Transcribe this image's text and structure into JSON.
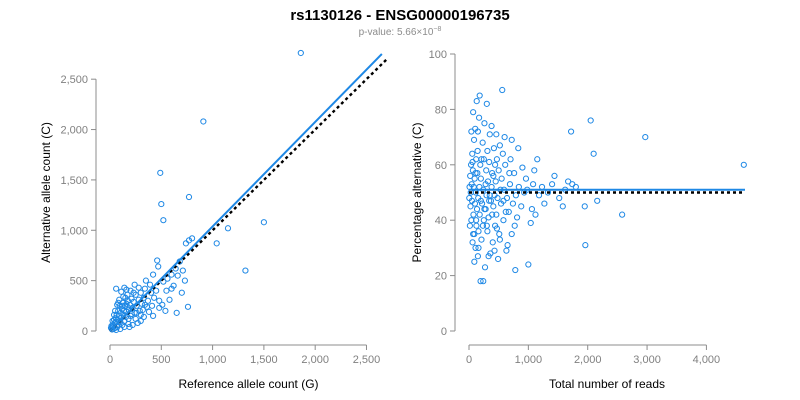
{
  "header": {
    "title": "rs1130126 - ENSG00000196735",
    "pvalue_prefix": "p-value: 5.66×10",
    "pvalue_exp": "−8"
  },
  "colors": {
    "points": "#1e88e5",
    "fit_line": "#1e88e5",
    "ref_line": "#000000",
    "axis": "#8c8c8c"
  },
  "chart_data": [
    {
      "type": "scatter",
      "xlabel": "Reference allele count (G)",
      "ylabel": "Alternative allele count (C)",
      "xlim": [
        0,
        2700
      ],
      "ylim": [
        0,
        2750
      ],
      "xticks": [
        0,
        500,
        1000,
        1500,
        2000,
        2500
      ],
      "xtick_labels": [
        "0",
        "500",
        "1,000",
        "1,500",
        "2,000",
        "2,500"
      ],
      "yticks": [
        0,
        500,
        1000,
        1500,
        2000,
        2500
      ],
      "ytick_labels": [
        "0",
        "500",
        "1,000",
        "1,500",
        "2,000",
        "2,500"
      ],
      "grid": false,
      "fit_line": {
        "style": "solid",
        "x": [
          0,
          2650
        ],
        "y": [
          0,
          2750
        ]
      },
      "reference_line": {
        "style": "dotted",
        "x": [
          0,
          2700
        ],
        "y": [
          0,
          2700
        ]
      },
      "points": [
        [
          1860,
          2760
        ],
        [
          910,
          2080
        ],
        [
          490,
          1570
        ],
        [
          500,
          1260
        ],
        [
          770,
          1330
        ],
        [
          520,
          1100
        ],
        [
          1500,
          1080
        ],
        [
          1150,
          1020
        ],
        [
          1040,
          870
        ],
        [
          800,
          920
        ],
        [
          770,
          900
        ],
        [
          740,
          870
        ],
        [
          1320,
          600
        ],
        [
          760,
          240
        ],
        [
          650,
          180
        ],
        [
          730,
          500
        ],
        [
          680,
          690
        ],
        [
          640,
          620
        ],
        [
          600,
          560
        ],
        [
          560,
          520
        ],
        [
          520,
          490
        ],
        [
          470,
          640
        ],
        [
          460,
          700
        ],
        [
          420,
          560
        ],
        [
          400,
          380
        ],
        [
          390,
          460
        ],
        [
          370,
          300
        ],
        [
          340,
          420
        ],
        [
          330,
          330
        ],
        [
          310,
          270
        ],
        [
          300,
          380
        ],
        [
          290,
          200
        ],
        [
          280,
          310
        ],
        [
          260,
          250
        ],
        [
          250,
          360
        ],
        [
          240,
          180
        ],
        [
          230,
          290
        ],
        [
          220,
          230
        ],
        [
          210,
          320
        ],
        [
          200,
          150
        ],
        [
          195,
          260
        ],
        [
          185,
          210
        ],
        [
          180,
          120
        ],
        [
          175,
          300
        ],
        [
          170,
          240
        ],
        [
          160,
          190
        ],
        [
          155,
          140
        ],
        [
          150,
          330
        ],
        [
          145,
          250
        ],
        [
          140,
          100
        ],
        [
          135,
          200
        ],
        [
          130,
          160
        ],
        [
          125,
          280
        ],
        [
          120,
          60
        ],
        [
          115,
          220
        ],
        [
          110,
          130
        ],
        [
          105,
          180
        ],
        [
          100,
          90
        ],
        [
          95,
          250
        ],
        [
          90,
          150
        ],
        [
          85,
          60
        ],
        [
          80,
          200
        ],
        [
          75,
          110
        ],
        [
          70,
          40
        ],
        [
          65,
          160
        ],
        [
          60,
          90
        ],
        [
          55,
          130
        ],
        [
          50,
          30
        ],
        [
          45,
          80
        ],
        [
          40,
          110
        ],
        [
          35,
          20
        ],
        [
          30,
          60
        ],
        [
          25,
          40
        ],
        [
          20,
          15
        ],
        [
          15,
          50
        ],
        [
          10,
          30
        ],
        [
          60,
          420
        ],
        [
          110,
          390
        ],
        [
          160,
          410
        ],
        [
          240,
          460
        ],
        [
          280,
          430
        ],
        [
          350,
          500
        ],
        [
          430,
          330
        ],
        [
          380,
          190
        ],
        [
          330,
          140
        ],
        [
          300,
          100
        ],
        [
          270,
          80
        ],
        [
          220,
          60
        ],
        [
          190,
          40
        ],
        [
          250,
          120
        ],
        [
          320,
          210
        ],
        [
          360,
          240
        ],
        [
          410,
          250
        ],
        [
          450,
          400
        ],
        [
          480,
          300
        ],
        [
          510,
          260
        ],
        [
          550,
          400
        ],
        [
          580,
          310
        ],
        [
          620,
          450
        ],
        [
          700,
          380
        ],
        [
          540,
          200
        ],
        [
          230,
          380
        ],
        [
          200,
          400
        ],
        [
          170,
          360
        ],
        [
          130,
          340
        ],
        [
          90,
          310
        ],
        [
          70,
          260
        ],
        [
          120,
          250
        ],
        [
          160,
          270
        ],
        [
          210,
          170
        ],
        [
          260,
          180
        ],
        [
          300,
          160
        ],
        [
          340,
          260
        ],
        [
          140,
          40
        ],
        [
          180,
          70
        ],
        [
          100,
          20
        ],
        [
          60,
          10
        ],
        [
          40,
          160
        ],
        [
          25,
          100
        ],
        [
          50,
          200
        ],
        [
          80,
          280
        ],
        [
          140,
          430
        ],
        [
          420,
          150
        ],
        [
          480,
          230
        ],
        [
          600,
          420
        ],
        [
          660,
          550
        ],
        [
          710,
          600
        ]
      ]
    },
    {
      "type": "scatter",
      "xlabel": "Total number of reads",
      "ylabel": "Percentage alternative (C)",
      "xlim": [
        0,
        4650
      ],
      "ylim": [
        0,
        100
      ],
      "xticks": [
        0,
        1000,
        2000,
        3000,
        4000
      ],
      "xtick_labels": [
        "0",
        "1,000",
        "2,000",
        "3,000",
        "4,000"
      ],
      "yticks": [
        0,
        20,
        40,
        60,
        80,
        100
      ],
      "ytick_labels": [
        "0",
        "20",
        "40",
        "60",
        "80",
        "100"
      ],
      "grid": false,
      "fit_line": {
        "style": "solid",
        "y": 51
      },
      "reference_line": {
        "style": "dotted",
        "y": 50
      },
      "points": [
        [
          4630,
          60
        ],
        [
          2970,
          70
        ],
        [
          2050,
          76
        ],
        [
          2100,
          64
        ],
        [
          2580,
          42
        ],
        [
          1960,
          31
        ],
        [
          2160,
          47
        ],
        [
          1950,
          45
        ],
        [
          1720,
          72
        ],
        [
          1740,
          53
        ],
        [
          1670,
          54
        ],
        [
          1620,
          51
        ],
        [
          1520,
          48
        ],
        [
          1400,
          53
        ],
        [
          1270,
          46
        ],
        [
          1180,
          49
        ],
        [
          1150,
          62
        ],
        [
          1100,
          58
        ],
        [
          1060,
          44
        ],
        [
          1040,
          39
        ],
        [
          1000,
          24
        ],
        [
          960,
          55
        ],
        [
          930,
          50
        ],
        [
          880,
          45
        ],
        [
          840,
          52
        ],
        [
          810,
          41
        ],
        [
          790,
          49
        ],
        [
          780,
          22
        ],
        [
          760,
          57
        ],
        [
          740,
          46
        ],
        [
          720,
          35
        ],
        [
          700,
          62
        ],
        [
          690,
          53
        ],
        [
          670,
          43
        ],
        [
          650,
          31
        ],
        [
          640,
          48
        ],
        [
          630,
          29
        ],
        [
          610,
          60
        ],
        [
          600,
          70
        ],
        [
          590,
          51
        ],
        [
          580,
          40
        ],
        [
          560,
          87
        ],
        [
          550,
          55
        ],
        [
          540,
          46
        ],
        [
          520,
          67
        ],
        [
          510,
          35
        ],
        [
          500,
          58
        ],
        [
          490,
          26
        ],
        [
          480,
          48
        ],
        [
          470,
          62
        ],
        [
          460,
          42
        ],
        [
          450,
          54
        ],
        [
          440,
          38
        ],
        [
          430,
          49
        ],
        [
          420,
          66
        ],
        [
          410,
          45
        ],
        [
          400,
          32
        ],
        [
          390,
          57
        ],
        [
          380,
          52
        ],
        [
          370,
          47
        ],
        [
          360,
          28
        ],
        [
          350,
          71
        ],
        [
          340,
          61
        ],
        [
          330,
          41
        ],
        [
          320,
          54
        ],
        [
          310,
          36
        ],
        [
          300,
          82
        ],
        [
          295,
          49
        ],
        [
          290,
          58
        ],
        [
          280,
          44
        ],
        [
          270,
          23
        ],
        [
          260,
          75
        ],
        [
          250,
          62
        ],
        [
          240,
          51
        ],
        [
          235,
          38
        ],
        [
          230,
          68
        ],
        [
          220,
          46
        ],
        [
          210,
          33
        ],
        [
          200,
          55
        ],
        [
          195,
          18
        ],
        [
          190,
          60
        ],
        [
          180,
          42
        ],
        [
          175,
          52
        ],
        [
          170,
          77
        ],
        [
          160,
          36
        ],
        [
          155,
          48
        ],
        [
          150,
          27
        ],
        [
          145,
          65
        ],
        [
          140,
          57
        ],
        [
          135,
          44
        ],
        [
          130,
          83
        ],
        [
          125,
          38
        ],
        [
          120,
          62
        ],
        [
          115,
          50
        ],
        [
          110,
          30
        ],
        [
          105,
          73
        ],
        [
          100,
          46
        ],
        [
          95,
          55
        ],
        [
          90,
          35
        ],
        [
          85,
          69
        ],
        [
          80,
          52
        ],
        [
          75,
          42
        ],
        [
          70,
          79
        ],
        [
          65,
          58
        ],
        [
          60,
          32
        ],
        [
          55,
          64
        ],
        [
          50,
          47
        ],
        [
          45,
          53
        ],
        [
          40,
          40
        ],
        [
          35,
          60
        ],
        [
          30,
          50
        ],
        [
          25,
          45
        ],
        [
          20,
          56
        ],
        [
          15,
          38
        ],
        [
          10,
          52
        ],
        [
          5,
          48
        ],
        [
          240,
          18
        ],
        [
          330,
          27
        ],
        [
          460,
          71
        ],
        [
          520,
          33
        ],
        [
          570,
          64
        ],
        [
          620,
          43
        ],
        [
          680,
          57
        ],
        [
          720,
          69
        ],
        [
          770,
          38
        ],
        [
          830,
          66
        ],
        [
          900,
          59
        ],
        [
          980,
          51
        ],
        [
          1080,
          53
        ],
        [
          1120,
          42
        ],
        [
          1230,
          52
        ],
        [
          1330,
          50
        ],
        [
          1440,
          56
        ],
        [
          1580,
          45
        ],
        [
          1800,
          52
        ],
        [
          260,
          44
        ],
        [
          310,
          65
        ],
        [
          380,
          74
        ],
        [
          430,
          29
        ],
        [
          150,
          72
        ],
        [
          90,
          25
        ],
        [
          60,
          61
        ],
        [
          120,
          40
        ],
        [
          180,
          85
        ],
        [
          210,
          62
        ],
        [
          280,
          53
        ],
        [
          350,
          49
        ],
        [
          410,
          56
        ],
        [
          470,
          37
        ],
        [
          530,
          51
        ],
        [
          580,
          47
        ],
        [
          40,
          72
        ],
        [
          70,
          35
        ],
        [
          110,
          57
        ],
        [
          160,
          30
        ],
        [
          200,
          47
        ],
        [
          250,
          40
        ],
        [
          300,
          38
        ],
        [
          340,
          47
        ],
        [
          390,
          42
        ],
        [
          440,
          60
        ]
      ]
    }
  ]
}
